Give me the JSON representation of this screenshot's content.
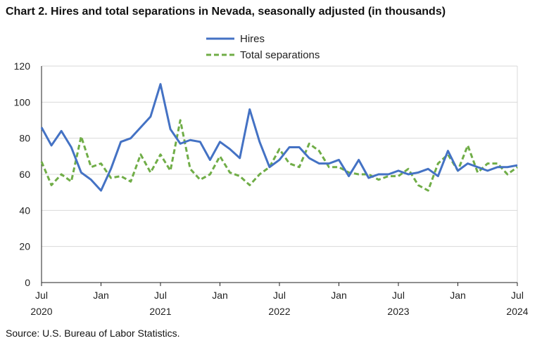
{
  "title": "Chart 2. Hires and total separations in Nevada, seasonally adjusted (in thousands)",
  "source": "Source: U.S. Bureau of Labor Statistics.",
  "colors": {
    "hires": "#4472c4",
    "separations": "#70ad47",
    "grid": "#d9d9d9",
    "axis": "#222222"
  },
  "chart_data": {
    "type": "line",
    "title": "Chart 2. Hires and total separations in Nevada, seasonally adjusted (in thousands)",
    "xlabel": "",
    "ylabel": "",
    "ylim": [
      0,
      120
    ],
    "yticks": [
      0,
      20,
      40,
      60,
      80,
      100,
      120
    ],
    "grid": "horizontal",
    "legend": "top-center",
    "x": [
      "2020-07",
      "2020-08",
      "2020-09",
      "2020-10",
      "2020-11",
      "2020-12",
      "2021-01",
      "2021-02",
      "2021-03",
      "2021-04",
      "2021-05",
      "2021-06",
      "2021-07",
      "2021-08",
      "2021-09",
      "2021-10",
      "2021-11",
      "2021-12",
      "2022-01",
      "2022-02",
      "2022-03",
      "2022-04",
      "2022-05",
      "2022-06",
      "2022-07",
      "2022-08",
      "2022-09",
      "2022-10",
      "2022-11",
      "2022-12",
      "2023-01",
      "2023-02",
      "2023-03",
      "2023-04",
      "2023-05",
      "2023-06",
      "2023-07",
      "2023-08",
      "2023-09",
      "2023-10",
      "2023-11",
      "2023-12",
      "2024-01",
      "2024-02",
      "2024-03",
      "2024-04",
      "2024-05",
      "2024-06",
      "2024-07"
    ],
    "xtick_labels": [
      {
        "month": "Jul",
        "year": "2020"
      },
      {
        "month": "Jan",
        "year": ""
      },
      {
        "month": "Jul",
        "year": "2021"
      },
      {
        "month": "Jan",
        "year": ""
      },
      {
        "month": "Jul",
        "year": "2022"
      },
      {
        "month": "Jan",
        "year": ""
      },
      {
        "month": "Jul",
        "year": "2023"
      },
      {
        "month": "Jan",
        "year": ""
      },
      {
        "month": "Jul",
        "year": "2024"
      }
    ],
    "series": [
      {
        "name": "Hires",
        "style": "solid",
        "values": [
          86,
          76,
          84,
          75,
          61,
          57,
          51,
          63,
          78,
          80,
          86,
          92,
          110,
          85,
          77,
          79,
          78,
          68,
          78,
          74,
          69,
          96,
          78,
          64,
          68,
          75,
          75,
          69,
          66,
          66,
          68,
          59,
          68,
          58,
          60,
          60,
          62,
          60,
          61,
          63,
          59,
          73,
          62,
          66,
          64,
          62,
          64,
          64,
          65
        ]
      },
      {
        "name": "Total separations",
        "style": "dashed",
        "values": [
          67,
          54,
          60,
          56,
          81,
          64,
          66,
          58,
          59,
          56,
          71,
          61,
          71,
          62,
          90,
          63,
          57,
          60,
          70,
          61,
          59,
          54,
          60,
          64,
          74,
          66,
          64,
          77,
          73,
          64,
          64,
          61,
          60,
          60,
          57,
          59,
          59,
          63,
          54,
          51,
          66,
          71,
          62,
          76,
          61,
          66,
          66,
          60,
          64
        ]
      }
    ]
  }
}
